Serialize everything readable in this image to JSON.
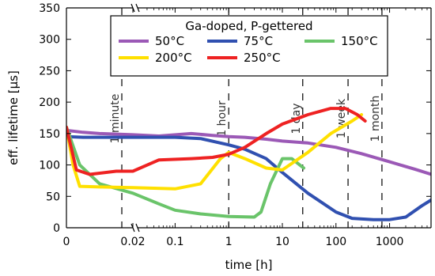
{
  "chart_data": {
    "type": "line",
    "xlabel": "time [h]",
    "ylabel": "eff. lifetime [µs]",
    "xscale": "linear segment 0 to 0.02, then log",
    "ylim": [
      0,
      350
    ],
    "yticks": [
      0,
      50,
      100,
      150,
      200,
      250,
      300,
      350
    ],
    "xticks": [
      {
        "value": 0,
        "label": "0"
      },
      {
        "value": 0.02,
        "label": "0.02"
      },
      {
        "value": 0.1,
        "label": "0.1"
      },
      {
        "value": 1,
        "label": "1"
      },
      {
        "value": 10,
        "label": "10"
      },
      {
        "value": 100,
        "label": "100"
      },
      {
        "value": 1000,
        "label": "1000"
      }
    ],
    "grid": false,
    "legend": {
      "title": "Ga-doped, P-gettered",
      "placement": "top-center",
      "columns": 3
    },
    "time_markers": [
      {
        "label": "1 minute",
        "x": 0.01667
      },
      {
        "label": "1 hour",
        "x": 1
      },
      {
        "label": "1 day",
        "x": 24
      },
      {
        "label": "1 week",
        "x": 168
      },
      {
        "label": "1 month",
        "x": 720
      }
    ],
    "series": [
      {
        "name": "50°C",
        "color": "#9b59b6",
        "points": [
          [
            0,
            155
          ],
          [
            0.005,
            152
          ],
          [
            0.01,
            150
          ],
          [
            0.02,
            148
          ],
          [
            0.05,
            146
          ],
          [
            0.2,
            150
          ],
          [
            0.5,
            147
          ],
          [
            1,
            145
          ],
          [
            2,
            144
          ],
          [
            5,
            141
          ],
          [
            10,
            138
          ],
          [
            30,
            135
          ],
          [
            100,
            128
          ],
          [
            300,
            118
          ],
          [
            1000,
            105
          ],
          [
            3000,
            93
          ],
          [
            6000,
            85
          ]
        ]
      },
      {
        "name": "75°C",
        "color": "#3050b0",
        "points": [
          [
            0,
            145
          ],
          [
            0.005,
            144
          ],
          [
            0.01,
            144
          ],
          [
            0.02,
            144
          ],
          [
            0.1,
            144
          ],
          [
            0.3,
            142
          ],
          [
            1,
            132
          ],
          [
            2,
            125
          ],
          [
            5,
            110
          ],
          [
            10,
            88
          ],
          [
            30,
            55
          ],
          [
            100,
            25
          ],
          [
            200,
            15
          ],
          [
            500,
            13
          ],
          [
            1000,
            13
          ],
          [
            2000,
            17
          ],
          [
            4000,
            35
          ],
          [
            7000,
            48
          ]
        ]
      },
      {
        "name": "150°C",
        "color": "#6ac46a",
        "points": [
          [
            0,
            160
          ],
          [
            0.002,
            130
          ],
          [
            0.004,
            100
          ],
          [
            0.01,
            70
          ],
          [
            0.02,
            55
          ],
          [
            0.05,
            38
          ],
          [
            0.1,
            28
          ],
          [
            0.3,
            22
          ],
          [
            1,
            18
          ],
          [
            3,
            17
          ],
          [
            4,
            25
          ],
          [
            6,
            70
          ],
          [
            10,
            110
          ],
          [
            15,
            110
          ],
          [
            25,
            95
          ]
        ]
      },
      {
        "name": "200°C",
        "color": "#ffe000",
        "points": [
          [
            0,
            160
          ],
          [
            0.002,
            100
          ],
          [
            0.004,
            66
          ],
          [
            0.01,
            65
          ],
          [
            0.02,
            64
          ],
          [
            0.1,
            62
          ],
          [
            0.3,
            70
          ],
          [
            0.7,
            110
          ],
          [
            1,
            120
          ],
          [
            2,
            110
          ],
          [
            5,
            95
          ],
          [
            10,
            92
          ],
          [
            30,
            120
          ],
          [
            80,
            150
          ],
          [
            200,
            170
          ],
          [
            300,
            180
          ]
        ]
      },
      {
        "name": "250°C",
        "color": "#ee2222",
        "points": [
          [
            0,
            160
          ],
          [
            0.003,
            92
          ],
          [
            0.007,
            85
          ],
          [
            0.015,
            90
          ],
          [
            0.02,
            90
          ],
          [
            0.05,
            108
          ],
          [
            0.2,
            110
          ],
          [
            0.5,
            112
          ],
          [
            1,
            117
          ],
          [
            2,
            128
          ],
          [
            5,
            150
          ],
          [
            10,
            165
          ],
          [
            30,
            180
          ],
          [
            80,
            190
          ],
          [
            150,
            190
          ],
          [
            250,
            180
          ],
          [
            350,
            170
          ]
        ]
      }
    ]
  }
}
